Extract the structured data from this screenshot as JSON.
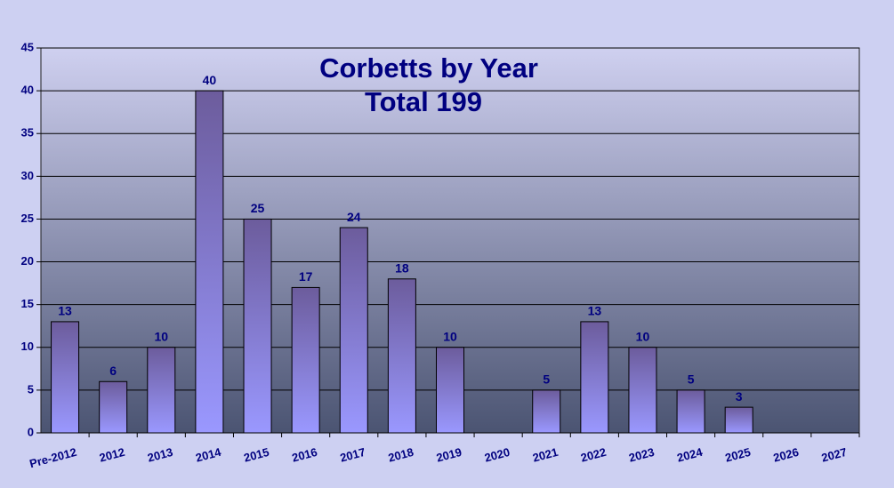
{
  "chart_data": {
    "type": "bar",
    "title": "Corbetts by Year",
    "subtitle": "Total 199",
    "categories": [
      "Pre-2012",
      "2012",
      "2013",
      "2014",
      "2015",
      "2016",
      "2017",
      "2018",
      "2019",
      "2020",
      "2021",
      "2022",
      "2023",
      "2024",
      "2025",
      "2026",
      "2027"
    ],
    "values": [
      13,
      6,
      10,
      40,
      25,
      17,
      24,
      18,
      10,
      null,
      5,
      13,
      10,
      5,
      3,
      null,
      null
    ],
    "color": "#7a6fb8",
    "ylim": [
      0,
      45
    ],
    "yticks": [
      0,
      5,
      10,
      15,
      20,
      25,
      30,
      35,
      40,
      45
    ],
    "grid": true
  }
}
